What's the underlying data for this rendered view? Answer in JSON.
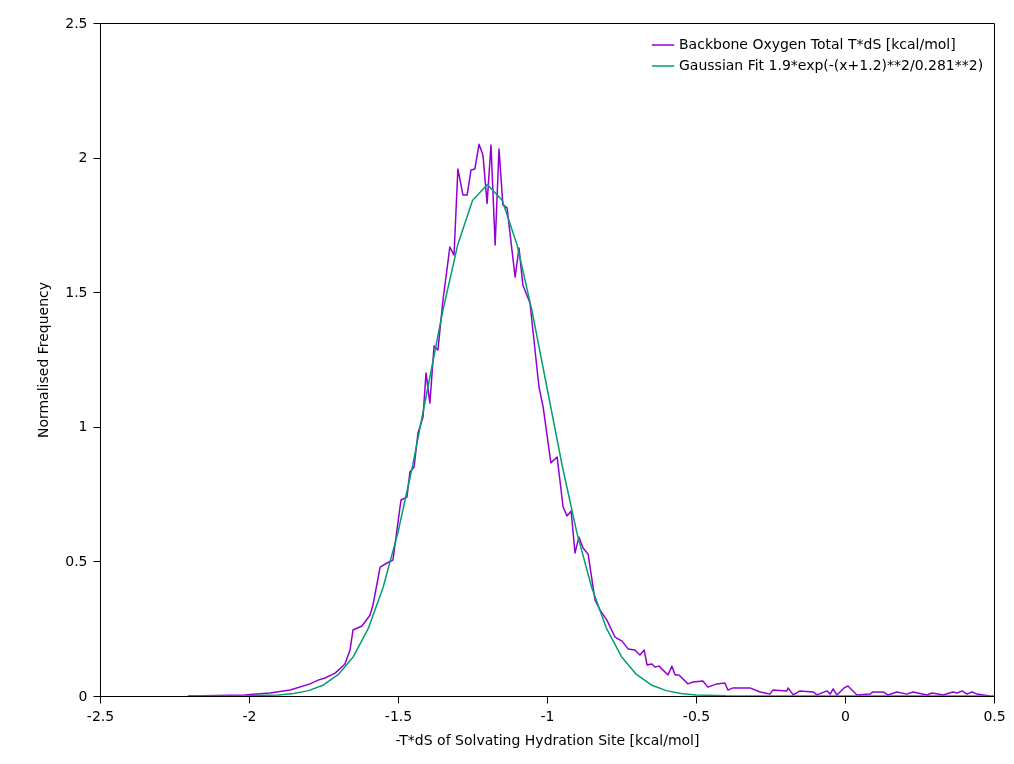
{
  "chart_data": {
    "type": "line",
    "xlabel": "-T*dS of Solvating Hydration Site [kcal/mol]",
    "ylabel": "Normalised Frequency",
    "xlim": [
      -2.5,
      0.5
    ],
    "xticks": [
      -2.5,
      -2,
      -1.5,
      -1,
      -0.5,
      0,
      0.5
    ],
    "ylim": [
      0,
      2.5
    ],
    "yticks": [
      0,
      0.5,
      1,
      1.5,
      2,
      2.5
    ],
    "grid": false,
    "legend": "top right",
    "marker": "none",
    "line_style": "solid",
    "series": [
      {
        "name": "Backbone Oxygen Total T*dS [kcal/mol]",
        "color": "#9400d3",
        "x": [
          -2.205,
          -2.013,
          -1.93,
          -1.862,
          -1.795,
          -1.768,
          -1.745,
          -1.711,
          -1.678,
          -1.661,
          -1.651,
          -1.621,
          -1.594,
          -1.584,
          -1.56,
          -1.537,
          -1.517,
          -1.49,
          -1.47,
          -1.46,
          -1.446,
          -1.433,
          -1.416,
          -1.406,
          -1.393,
          -1.379,
          -1.366,
          -1.349,
          -1.326,
          -1.312,
          -1.299,
          -1.282,
          -1.268,
          -1.255,
          -1.242,
          -1.228,
          -1.215,
          -1.201,
          -1.188,
          -1.174,
          -1.161,
          -1.148,
          -1.134,
          -1.107,
          -1.094,
          -1.081,
          -1.057,
          -1.027,
          -1.013,
          -0.987,
          -0.966,
          -0.946,
          -0.933,
          -0.919,
          -0.906,
          -0.893,
          -0.879,
          -0.862,
          -0.839,
          -0.822,
          -0.799,
          -0.772,
          -0.748,
          -0.728,
          -0.705,
          -0.688,
          -0.674,
          -0.664,
          -0.648,
          -0.638,
          -0.624,
          -0.594,
          -0.581,
          -0.57,
          -0.557,
          -0.527,
          -0.51,
          -0.477,
          -0.46,
          -0.43,
          -0.403,
          -0.393,
          -0.376,
          -0.319,
          -0.285,
          -0.252,
          -0.242,
          -0.195,
          -0.191,
          -0.174,
          -0.151,
          -0.107,
          -0.094,
          -0.06,
          -0.05,
          -0.04,
          -0.027,
          -0.003,
          0.01,
          0.04,
          0.084,
          0.094,
          0.128,
          0.144,
          0.174,
          0.208,
          0.228,
          0.275,
          0.292,
          0.329,
          0.362,
          0.376,
          0.393,
          0.409,
          0.426,
          0.443,
          0.463,
          0.487
        ],
        "values": [
          0,
          0.004,
          0.011,
          0.022,
          0.045,
          0.059,
          0.067,
          0.085,
          0.119,
          0.171,
          0.245,
          0.26,
          0.3,
          0.338,
          0.479,
          0.494,
          0.505,
          0.728,
          0.739,
          0.832,
          0.851,
          0.977,
          1.036,
          1.2,
          1.088,
          1.3,
          1.285,
          1.471,
          1.668,
          1.638,
          1.958,
          1.861,
          1.861,
          1.954,
          1.958,
          2.05,
          2.01,
          1.83,
          2.047,
          1.675,
          2.032,
          1.824,
          1.813,
          1.556,
          1.664,
          1.527,
          1.46,
          1.148,
          1.074,
          0.866,
          0.888,
          0.702,
          0.669,
          0.687,
          0.531,
          0.591,
          0.55,
          0.527,
          0.357,
          0.319,
          0.282,
          0.219,
          0.204,
          0.175,
          0.171,
          0.152,
          0.171,
          0.115,
          0.119,
          0.108,
          0.111,
          0.078,
          0.111,
          0.078,
          0.078,
          0.045,
          0.052,
          0.056,
          0.033,
          0.045,
          0.048,
          0.022,
          0.03,
          0.03,
          0.015,
          0.007,
          0.022,
          0.019,
          0.03,
          0.004,
          0.019,
          0.015,
          0.004,
          0.019,
          0.007,
          0.026,
          0.004,
          0.03,
          0.037,
          0.004,
          0.007,
          0.015,
          0.015,
          0.004,
          0.015,
          0.007,
          0.015,
          0.004,
          0.011,
          0.004,
          0.015,
          0.011,
          0.019,
          0.007,
          0.015,
          0.007,
          0.004,
          0
        ]
      },
      {
        "name": "Gaussian Fit 1.9*exp(-(x+1.2)**2/0.281**2)",
        "color": "#009e73",
        "x": [
          -2.2,
          -2.0,
          -1.9,
          -1.85,
          -1.8,
          -1.75,
          -1.7,
          -1.65,
          -1.6,
          -1.55,
          -1.5,
          -1.45,
          -1.4,
          -1.35,
          -1.3,
          -1.25,
          -1.2,
          -1.15,
          -1.1,
          -1.05,
          -1.0,
          -0.95,
          -0.9,
          -0.85,
          -0.8,
          -0.75,
          -0.7,
          -0.65,
          -0.6,
          -0.55,
          -0.5,
          -0.4,
          -0.2,
          0.5
        ],
        "values": [
          0,
          0.001,
          0.004,
          0.009,
          0.02,
          0.041,
          0.08,
          0.146,
          0.25,
          0.403,
          0.608,
          0.861,
          1.145,
          1.429,
          1.674,
          1.841,
          1.9,
          1.841,
          1.674,
          1.429,
          1.145,
          0.861,
          0.608,
          0.403,
          0.25,
          0.146,
          0.08,
          0.041,
          0.02,
          0.009,
          0.004,
          0.001,
          0,
          0
        ]
      }
    ]
  }
}
